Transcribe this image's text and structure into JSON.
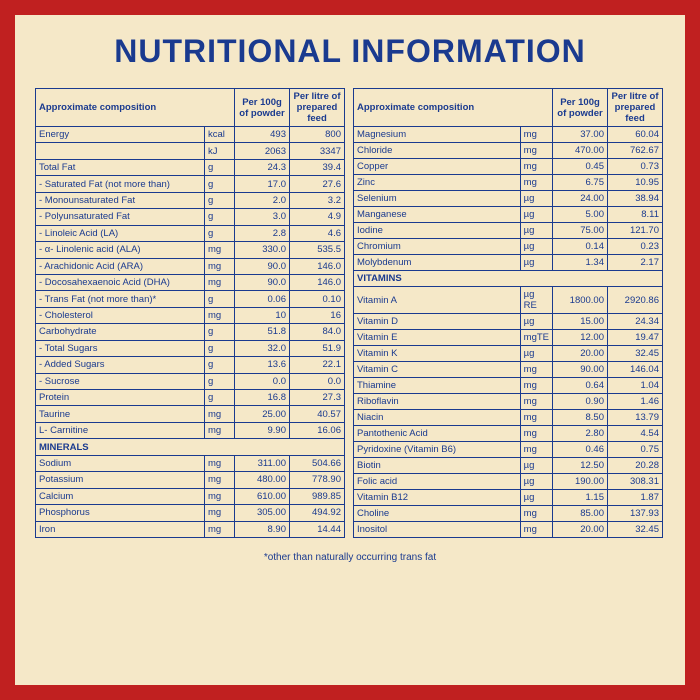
{
  "title": "NUTRITIONAL INFORMATION",
  "headers": {
    "composition": "Approximate composition",
    "per100g": "Per 100g of powder",
    "perLitre": "Per litre of prepared feed"
  },
  "footnote": "*other than naturally occurring trans fat",
  "left": [
    {
      "n": "Energy",
      "u": "kcal",
      "a": "493",
      "b": "800"
    },
    {
      "n": "",
      "u": "kJ",
      "a": "2063",
      "b": "3347"
    },
    {
      "n": "Total Fat",
      "u": "g",
      "a": "24.3",
      "b": "39.4"
    },
    {
      "n": " - Saturated Fat (not more than)",
      "u": "g",
      "a": "17.0",
      "b": "27.6"
    },
    {
      "n": " - Monounsaturated Fat",
      "u": "g",
      "a": "2.0",
      "b": "3.2"
    },
    {
      "n": " - Polyunsaturated Fat",
      "u": "g",
      "a": "3.0",
      "b": "4.9"
    },
    {
      "n": " - Linoleic Acid (LA)",
      "u": "g",
      "a": "2.8",
      "b": "4.6"
    },
    {
      "n": " - α- Linolenic acid (ALA)",
      "u": "mg",
      "a": "330.0",
      "b": "535.5"
    },
    {
      "n": " - Arachidonic Acid (ARA)",
      "u": "mg",
      "a": "90.0",
      "b": "146.0"
    },
    {
      "n": " - Docosahexaenoic Acid (DHA)",
      "u": "mg",
      "a": "90.0",
      "b": "146.0"
    },
    {
      "n": " - Trans Fat (not more than)*",
      "u": "g",
      "a": "0.06",
      "b": "0.10"
    },
    {
      "n": " - Cholesterol",
      "u": "mg",
      "a": "10",
      "b": "16"
    },
    {
      "n": "Carbohydrate",
      "u": "g",
      "a": "51.8",
      "b": "84.0"
    },
    {
      "n": " - Total Sugars",
      "u": "g",
      "a": "32.0",
      "b": "51.9"
    },
    {
      "n": " - Added Sugars",
      "u": "g",
      "a": "13.6",
      "b": "22.1"
    },
    {
      "n": " - Sucrose",
      "u": "g",
      "a": "0.0",
      "b": "0.0"
    },
    {
      "n": "Protein",
      "u": "g",
      "a": "16.8",
      "b": "27.3"
    },
    {
      "n": "Taurine",
      "u": "mg",
      "a": "25.00",
      "b": "40.57"
    },
    {
      "n": "L- Carnitine",
      "u": "mg",
      "a": "9.90",
      "b": "16.06"
    },
    {
      "n": "MINERALS",
      "section": true
    },
    {
      "n": "Sodium",
      "u": "mg",
      "a": "311.00",
      "b": "504.66"
    },
    {
      "n": "Potassium",
      "u": "mg",
      "a": "480.00",
      "b": "778.90"
    },
    {
      "n": "Calcium",
      "u": "mg",
      "a": "610.00",
      "b": "989.85"
    },
    {
      "n": "Phosphorus",
      "u": "mg",
      "a": "305.00",
      "b": "494.92"
    },
    {
      "n": "Iron",
      "u": "mg",
      "a": "8.90",
      "b": "14.44"
    }
  ],
  "right": [
    {
      "n": "Magnesium",
      "u": "mg",
      "a": "37.00",
      "b": "60.04"
    },
    {
      "n": "Chloride",
      "u": "mg",
      "a": "470.00",
      "b": "762.67"
    },
    {
      "n": "Copper",
      "u": "mg",
      "a": "0.45",
      "b": "0.73"
    },
    {
      "n": "Zinc",
      "u": "mg",
      "a": "6.75",
      "b": "10.95"
    },
    {
      "n": "Selenium",
      "u": "µg",
      "a": "24.00",
      "b": "38.94"
    },
    {
      "n": "Manganese",
      "u": "µg",
      "a": "5.00",
      "b": "8.11"
    },
    {
      "n": "Iodine",
      "u": "µg",
      "a": "75.00",
      "b": "121.70"
    },
    {
      "n": "Chromium",
      "u": "µg",
      "a": "0.14",
      "b": "0.23"
    },
    {
      "n": "Molybdenum",
      "u": "µg",
      "a": "1.34",
      "b": "2.17"
    },
    {
      "n": "VITAMINS",
      "section": true
    },
    {
      "n": "Vitamin A",
      "u": "µg RE",
      "a": "1800.00",
      "b": "2920.86"
    },
    {
      "n": "Vitamin D",
      "u": "µg",
      "a": "15.00",
      "b": "24.34"
    },
    {
      "n": "Vitamin E",
      "u": "mgTE",
      "a": "12.00",
      "b": "19.47"
    },
    {
      "n": "Vitamin K",
      "u": "µg",
      "a": "20.00",
      "b": "32.45"
    },
    {
      "n": "Vitamin C",
      "u": "mg",
      "a": "90.00",
      "b": "146.04"
    },
    {
      "n": "Thiamine",
      "u": "mg",
      "a": "0.64",
      "b": "1.04"
    },
    {
      "n": "Riboflavin",
      "u": "mg",
      "a": "0.90",
      "b": "1.46"
    },
    {
      "n": "Niacin",
      "u": "mg",
      "a": "8.50",
      "b": "13.79"
    },
    {
      "n": "Pantothenic Acid",
      "u": "mg",
      "a": "2.80",
      "b": "4.54"
    },
    {
      "n": "Pyridoxine (Vitamin B6)",
      "u": "mg",
      "a": "0.46",
      "b": "0.75"
    },
    {
      "n": "Biotin",
      "u": "µg",
      "a": "12.50",
      "b": "20.28"
    },
    {
      "n": "Folic acid",
      "u": "µg",
      "a": "190.00",
      "b": "308.31"
    },
    {
      "n": "Vitamin B12",
      "u": "µg",
      "a": "1.15",
      "b": "1.87"
    },
    {
      "n": "Choline",
      "u": "mg",
      "a": "85.00",
      "b": "137.93"
    },
    {
      "n": "Inositol",
      "u": "mg",
      "a": "20.00",
      "b": "32.45"
    }
  ]
}
